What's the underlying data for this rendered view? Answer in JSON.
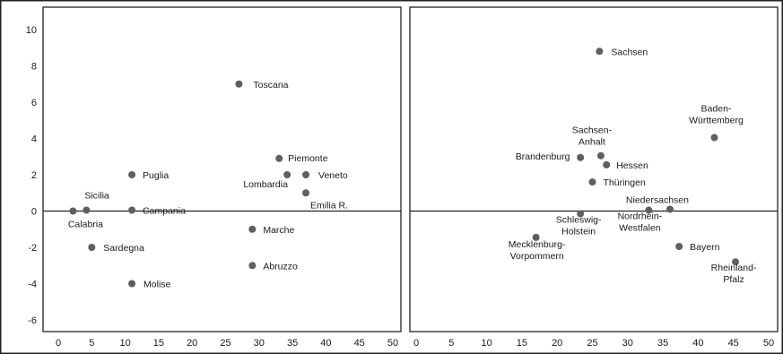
{
  "chart_data": [
    {
      "type": "scatter",
      "xlim": [
        0,
        50
      ],
      "ylim": [
        -6,
        10
      ],
      "xticks": [
        0,
        5,
        10,
        15,
        20,
        25,
        30,
        35,
        40,
        45,
        50
      ],
      "yticks": [
        10,
        8,
        6,
        4,
        2,
        0,
        -2,
        -4,
        -6
      ],
      "grid": false,
      "legend": "none",
      "point_color": "#5f5f5f",
      "points": [
        {
          "label": "Toscana",
          "x": 27,
          "y": 7.0
        },
        {
          "label": "Piemonte",
          "x": 33,
          "y": 2.9
        },
        {
          "label": "Lombardia",
          "x": 34.2,
          "y": 2.0
        },
        {
          "label": "Veneto",
          "x": 37,
          "y": 2.0
        },
        {
          "label": "Emilia R.",
          "x": 37,
          "y": 1.0
        },
        {
          "label": "Puglia",
          "x": 11,
          "y": 2.0
        },
        {
          "label": "Sicilia",
          "x": 4.2,
          "y": 0.05
        },
        {
          "label": "Calabria",
          "x": 2.2,
          "y": 0.0
        },
        {
          "label": "Campania",
          "x": 11,
          "y": 0.05
        },
        {
          "label": "Marche",
          "x": 29,
          "y": -1.0
        },
        {
          "label": "Sardegna",
          "x": 5,
          "y": -2.0
        },
        {
          "label": "Abruzzo",
          "x": 29,
          "y": -3.0
        },
        {
          "label": "Molise",
          "x": 11,
          "y": -4.0
        }
      ]
    },
    {
      "type": "scatter",
      "xlim": [
        0,
        50
      ],
      "ylim": [
        -6,
        10
      ],
      "xticks": [
        0,
        5,
        10,
        15,
        20,
        25,
        30,
        35,
        40,
        45,
        50
      ],
      "grid": false,
      "legend": "none",
      "point_color": "#5f5f5f",
      "points": [
        {
          "label": "Sachsen",
          "x": 26,
          "y": 8.8
        },
        {
          "label": "Baden-\nWürttemberg",
          "x": 42.3,
          "y": 4.05
        },
        {
          "label": "Sachsen-\nAnhalt",
          "x": 26.2,
          "y": 3.05
        },
        {
          "label": "Brandenburg",
          "x": 23.3,
          "y": 2.95
        },
        {
          "label": "Hessen",
          "x": 27,
          "y": 2.55
        },
        {
          "label": "Thüringen",
          "x": 25,
          "y": 1.6
        },
        {
          "label": "Niedersachsen",
          "x": 36,
          "y": 0.1
        },
        {
          "label": "Nordrhein-\nWestfalen",
          "x": 33,
          "y": 0.05
        },
        {
          "label": "Schleswig-\nHolstein",
          "x": 23.3,
          "y": -0.15
        },
        {
          "label": "Mecklenburg-\nVorpommern",
          "x": 17,
          "y": -1.45
        },
        {
          "label": "Bayern",
          "x": 37.3,
          "y": -1.95
        },
        {
          "label": "Rheinland-\nPfalz",
          "x": 45.3,
          "y": -2.8
        }
      ]
    }
  ]
}
